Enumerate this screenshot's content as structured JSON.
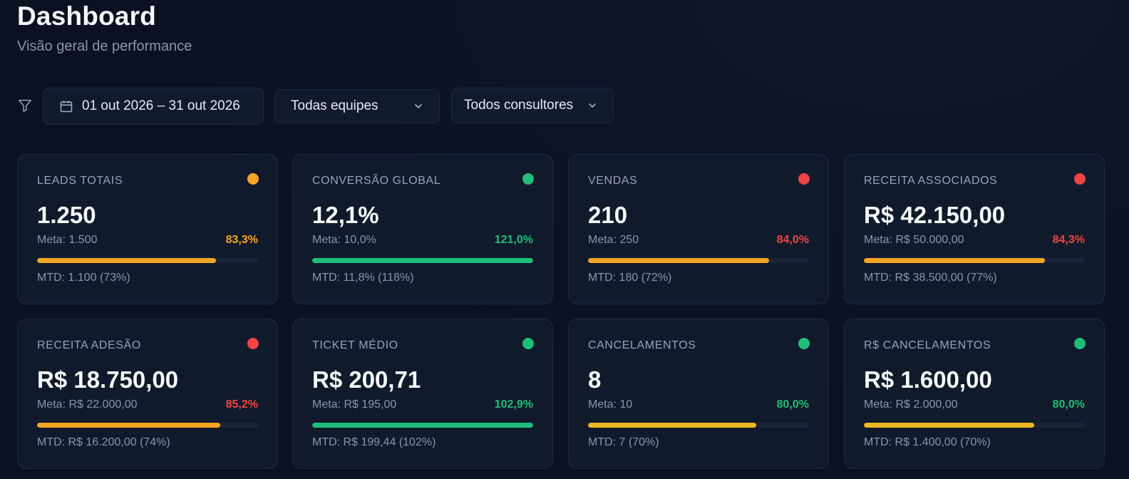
{
  "header": {
    "title": "Dashboard",
    "subtitle": "Visão geral de performance"
  },
  "filters": {
    "filter_icon": "filter-icon",
    "date_range": "01 out 2026 – 31 out 2026",
    "team": "Todas equipes",
    "consultant": "Todos consultores"
  },
  "colors": {
    "orange": "#f5a524",
    "green": "#1fbf7a",
    "red": "#ef4444",
    "yellow": "#e9b824"
  },
  "cards": [
    {
      "label": "LEADS TOTAIS",
      "value": "1.250",
      "meta": "Meta: 1.500",
      "pct": "83,3%",
      "progress": 0.81,
      "mtd": "MTD: 1.100 (73%)",
      "dot": "#f5a524",
      "pct_color": "#f5a524",
      "bar": "#f5a524"
    },
    {
      "label": "CONVERSÃO GLOBAL",
      "value": "12,1%",
      "meta": "Meta: 10,0%",
      "pct": "121,0%",
      "progress": 1.0,
      "mtd": "MTD: 11,8% (118%)",
      "dot": "#1fbf7a",
      "pct_color": "#1fbf7a",
      "bar": "#1fbf7a"
    },
    {
      "label": "VENDAS",
      "value": "210",
      "meta": "Meta: 250",
      "pct": "84,0%",
      "progress": 0.82,
      "mtd": "MTD: 180 (72%)",
      "dot": "#ef4444",
      "pct_color": "#ef4444",
      "bar": "#f5a524"
    },
    {
      "label": "RECEITA ASSOCIADOS",
      "value": "R$ 42.150,00",
      "meta": "Meta: R$ 50.000,00",
      "pct": "84,3%",
      "progress": 0.82,
      "mtd": "MTD: R$ 38.500,00 (77%)",
      "dot": "#ef4444",
      "pct_color": "#ef4444",
      "bar": "#f5a524"
    },
    {
      "label": "RECEITA ADESÃO",
      "value": "R$ 18.750,00",
      "meta": "Meta: R$ 22.000,00",
      "pct": "85,2%",
      "progress": 0.83,
      "mtd": "MTD: R$ 16.200,00 (74%)",
      "dot": "#ef4444",
      "pct_color": "#ef4444",
      "bar": "#f5a524"
    },
    {
      "label": "TICKET MÉDIO",
      "value": "R$ 200,71",
      "meta": "Meta: R$ 195,00",
      "pct": "102,9%",
      "progress": 1.0,
      "mtd": "MTD: R$ 199,44 (102%)",
      "dot": "#1fbf7a",
      "pct_color": "#1fbf7a",
      "bar": "#1fbf7a"
    },
    {
      "label": "CANCELAMENTOS",
      "value": "8",
      "meta": "Meta: 10",
      "pct": "80,0%",
      "progress": 0.76,
      "mtd": "MTD: 7 (70%)",
      "dot": "#1fbf7a",
      "pct_color": "#1fbf7a",
      "bar": "#e9b824"
    },
    {
      "label": "R$ CANCELAMENTOS",
      "value": "R$ 1.600,00",
      "meta": "Meta: R$ 2.000,00",
      "pct": "80,0%",
      "progress": 0.77,
      "mtd": "MTD: R$ 1.400,00 (70%)",
      "dot": "#1fbf7a",
      "pct_color": "#1fbf7a",
      "bar": "#e9b824"
    }
  ]
}
